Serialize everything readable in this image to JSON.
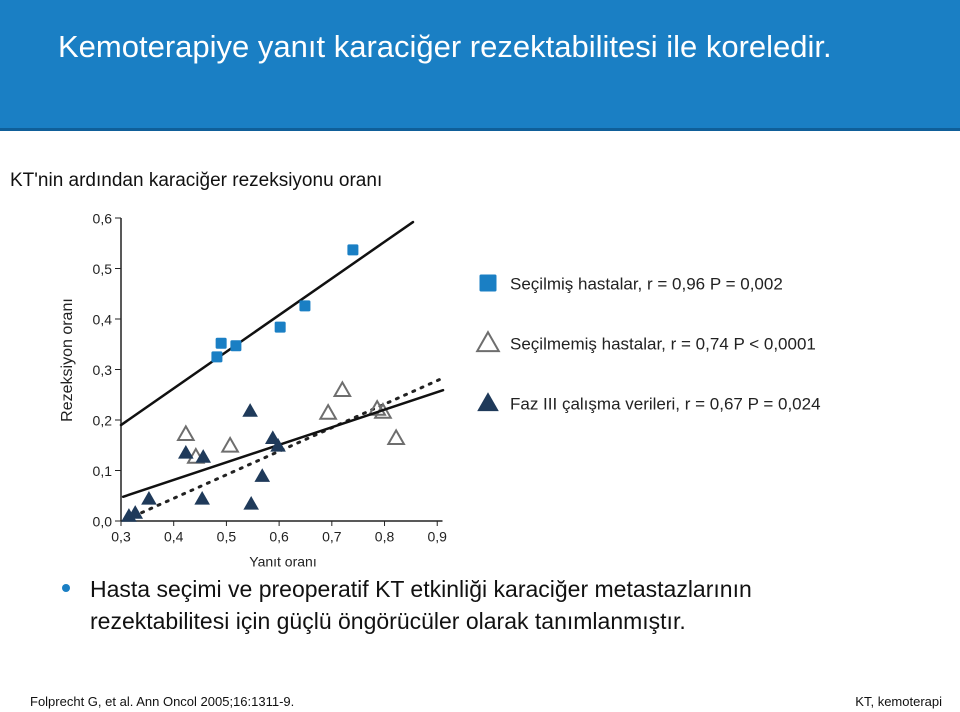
{
  "header": {
    "title": "Kemoterapiye yanıt karaciğer rezektabilitesi ile koreledir."
  },
  "subtitle": "KT'nin ardından karaciğer rezeksiyonu oranı",
  "bullet": "Hasta seçimi ve preoperatif KT etkinliği karaciğer metastazlarının rezektabilitesi için güçlü öngörücüler olarak tanımlanmıştır.",
  "footer": {
    "left": "Folprecht G, et al. Ann Oncol 2005;16:1311-9.",
    "right": "KT, kemoterapi"
  },
  "chart_data": {
    "type": "scatter",
    "xlabel": "Yanıt oranı",
    "ylabel": "Rezeksiyon oranı",
    "xlim": [
      0.3,
      0.91
    ],
    "ylim": [
      0,
      0.6
    ],
    "xticks": [
      {
        "value": 0.3,
        "label": "0,3"
      },
      {
        "value": 0.4,
        "label": "0,4"
      },
      {
        "value": 0.5,
        "label": "0,5"
      },
      {
        "value": 0.6,
        "label": "0,6"
      },
      {
        "value": 0.7,
        "label": "0,7"
      },
      {
        "value": 0.8,
        "label": "0,8"
      },
      {
        "value": 0.9,
        "label": "0,9"
      }
    ],
    "yticks": [
      {
        "value": 0,
        "label": "0,0"
      },
      {
        "value": 0.1,
        "label": "0,1"
      },
      {
        "value": 0.2,
        "label": "0,2"
      },
      {
        "value": 0.3,
        "label": "0,3"
      },
      {
        "value": 0.4,
        "label": "0,4"
      },
      {
        "value": 0.5,
        "label": "0,5"
      },
      {
        "value": 0.6,
        "label": "0,6"
      }
    ],
    "series": [
      {
        "name": "Seçilmiş hastalar, r = 0,96 P = 0,002",
        "color": "#1a7fc4",
        "marker": "square",
        "x": [
          0.482,
          0.49,
          0.518,
          0.602,
          0.649,
          0.74
        ],
        "values": [
          0.325,
          0.352,
          0.347,
          0.384,
          0.426,
          0.537
        ],
        "fit": {
          "x": [
            0.3,
            0.854
          ],
          "y": [
            0.19,
            0.592
          ],
          "style": "solid"
        }
      },
      {
        "name": "Seçilmemiş hastalar, r = 0,74 P < 0,0001",
        "color": "#6e6e6e",
        "marker": "open-triangle",
        "x": [
          0.423,
          0.442,
          0.507,
          0.693,
          0.72,
          0.786,
          0.797,
          0.822
        ],
        "values": [
          0.172,
          0.127,
          0.149,
          0.214,
          0.259,
          0.222,
          0.216,
          0.164
        ],
        "fit": {
          "x": [
            0.308,
            0.915
          ],
          "y": [
            0.002,
            0.285
          ],
          "style": "dotted"
        }
      },
      {
        "name": "Faz III çalışma verileri, r = 0,67 P = 0,024",
        "color": "#1f3a5a",
        "marker": "triangle",
        "x": [
          0.315,
          0.327,
          0.353,
          0.423,
          0.456,
          0.454,
          0.545,
          0.547,
          0.568,
          0.588,
          0.598
        ],
        "values": [
          0.01,
          0.016,
          0.044,
          0.135,
          0.127,
          0.044,
          0.218,
          0.034,
          0.089,
          0.164,
          0.149
        ],
        "fit": {
          "x": [
            0.304,
            0.911
          ],
          "y": [
            0.048,
            0.259
          ],
          "style": "solid"
        }
      }
    ]
  }
}
